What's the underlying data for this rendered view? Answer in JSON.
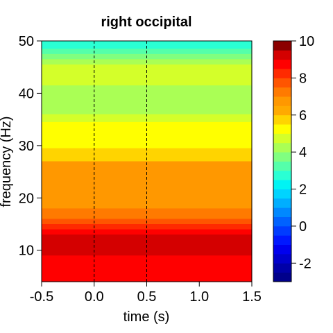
{
  "chart_data": {
    "type": "heatmap",
    "title": "right occipital",
    "xlabel": "time (s)",
    "ylabel": "frequency (Hz)",
    "xlim": [
      -0.5,
      1.5
    ],
    "ylim": [
      4,
      50
    ],
    "x_ticks": [
      "-0.5",
      "0.0",
      "0.5",
      "1.0",
      "1.5"
    ],
    "y_ticks": [
      "10",
      "20",
      "30",
      "40",
      "50"
    ],
    "vlines": [
      0.0,
      0.5
    ],
    "colorbar": {
      "range": [
        -3,
        10
      ],
      "ticks": [
        "-2",
        "0",
        "2",
        "4",
        "6",
        "8",
        "10"
      ],
      "levels": [
        {
          "from": -3.0,
          "to": -2.5,
          "color": "#00008b"
        },
        {
          "from": -2.5,
          "to": -2.0,
          "color": "#0000a8"
        },
        {
          "from": -2.0,
          "to": -1.5,
          "color": "#0000cc"
        },
        {
          "from": -1.5,
          "to": -1.0,
          "color": "#0000ee"
        },
        {
          "from": -1.0,
          "to": -0.5,
          "color": "#0018ff"
        },
        {
          "from": -0.5,
          "to": 0.0,
          "color": "#003cff"
        },
        {
          "from": 0.0,
          "to": 0.5,
          "color": "#0062ff"
        },
        {
          "from": 0.5,
          "to": 1.0,
          "color": "#0088ff"
        },
        {
          "from": 1.0,
          "to": 1.5,
          "color": "#00aeff"
        },
        {
          "from": 1.5,
          "to": 2.0,
          "color": "#00d4ff"
        },
        {
          "from": 2.0,
          "to": 2.5,
          "color": "#00f4f4"
        },
        {
          "from": 2.5,
          "to": 3.0,
          "color": "#2affd4"
        },
        {
          "from": 3.0,
          "to": 3.5,
          "color": "#55ffaa"
        },
        {
          "from": 3.5,
          "to": 4.0,
          "color": "#80ff80"
        },
        {
          "from": 4.0,
          "to": 4.5,
          "color": "#aaff55"
        },
        {
          "from": 4.5,
          "to": 5.0,
          "color": "#d4ff2a"
        },
        {
          "from": 5.0,
          "to": 5.5,
          "color": "#ffff00"
        },
        {
          "from": 5.5,
          "to": 6.0,
          "color": "#ffd400"
        },
        {
          "from": 6.0,
          "to": 6.5,
          "color": "#ffaa00"
        },
        {
          "from": 6.5,
          "to": 7.0,
          "color": "#ff9800"
        },
        {
          "from": 7.0,
          "to": 7.5,
          "color": "#ff7a00"
        },
        {
          "from": 7.5,
          "to": 8.0,
          "color": "#ff5500"
        },
        {
          "from": 8.0,
          "to": 8.5,
          "color": "#ff2a00"
        },
        {
          "from": 8.5,
          "to": 9.0,
          "color": "#ff0000"
        },
        {
          "from": 9.0,
          "to": 9.5,
          "color": "#d40000"
        },
        {
          "from": 9.5,
          "to": 10.0,
          "color": "#8b0000"
        }
      ]
    },
    "bands": [
      {
        "f_low": 48.5,
        "f_high": 50,
        "color": "#2affd4"
      },
      {
        "f_low": 47.5,
        "f_high": 48.5,
        "color": "#55ffaa"
      },
      {
        "f_low": 46.5,
        "f_high": 47.5,
        "color": "#80ff80"
      },
      {
        "f_low": 45.5,
        "f_high": 46.5,
        "color": "#aaff55"
      },
      {
        "f_low": 43.5,
        "f_high": 45.5,
        "color": "#d4ff2a"
      },
      {
        "f_low": 41.5,
        "f_high": 43.5,
        "color": "#d4ff2a"
      },
      {
        "f_low": 36.0,
        "f_high": 41.5,
        "color": "#aaff55"
      },
      {
        "f_low": 34.5,
        "f_high": 36.0,
        "color": "#d4ff2a"
      },
      {
        "f_low": 29.5,
        "f_high": 34.5,
        "color": "#ffff00"
      },
      {
        "f_low": 27.0,
        "f_high": 29.5,
        "color": "#ffd400"
      },
      {
        "f_low": 18.0,
        "f_high": 27.0,
        "color": "#ff9800"
      },
      {
        "f_low": 16.0,
        "f_high": 18.0,
        "color": "#ff7a00"
      },
      {
        "f_low": 15.0,
        "f_high": 16.0,
        "color": "#ff5500"
      },
      {
        "f_low": 14.0,
        "f_high": 15.0,
        "color": "#ff2a00"
      },
      {
        "f_low": 13.0,
        "f_high": 14.0,
        "color": "#ff0000"
      },
      {
        "f_low": 9.0,
        "f_high": 13.0,
        "color": "#d40000"
      },
      {
        "f_low": 4.0,
        "f_high": 9.0,
        "color": "#ff0000"
      }
    ]
  }
}
